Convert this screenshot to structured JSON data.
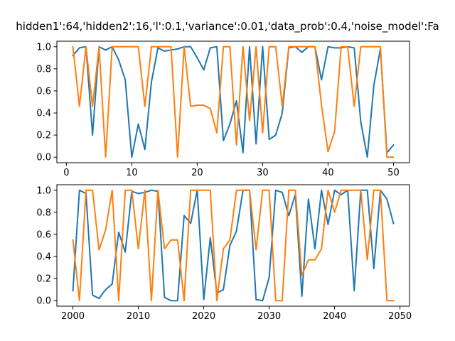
{
  "figure": {
    "title": "hidden1':64,'hidden2':16,'l':0.1,'variance':0.01,'data_prob':0.4,'noise_model':Fa"
  },
  "colors": {
    "series_a": "#1f77b4",
    "series_b": "#ff7f0e"
  },
  "chart_data": [
    {
      "type": "line",
      "title": "",
      "xlabel": "",
      "ylabel": "",
      "grid": false,
      "xlim": [
        -1.45,
        52.45
      ],
      "ylim": [
        -0.05,
        1.05
      ],
      "xticks": [
        0,
        10,
        20,
        30,
        40,
        50
      ],
      "yticks": [
        0.0,
        0.2,
        0.4,
        0.6,
        0.8,
        1.0
      ],
      "ytick_labels": [
        "0.0",
        "0.2",
        "0.4",
        "0.6",
        "0.8",
        "1.0"
      ],
      "x": [
        1,
        2,
        3,
        4,
        5,
        6,
        7,
        8,
        9,
        10,
        11,
        12,
        13,
        14,
        15,
        16,
        17,
        18,
        19,
        20,
        21,
        22,
        23,
        24,
        25,
        26,
        27,
        28,
        29,
        30,
        31,
        32,
        33,
        34,
        35,
        36,
        37,
        38,
        39,
        40,
        41,
        42,
        43,
        44,
        45,
        46,
        47,
        48,
        49,
        50
      ],
      "series": [
        {
          "values": [
            0.92,
            0.99,
            1.0,
            0.2,
            1.0,
            0.97,
            1.0,
            0.88,
            0.7,
            0.0,
            0.3,
            0.07,
            0.68,
            0.99,
            0.96,
            0.97,
            0.98,
            1.0,
            1.0,
            0.9,
            0.79,
            0.99,
            1.0,
            0.15,
            0.3,
            0.51,
            0.04,
            1.0,
            0.12,
            1.0,
            0.16,
            0.2,
            0.4,
            0.99,
            1.0,
            0.95,
            1.0,
            1.0,
            0.7,
            1.0,
            0.99,
            0.99,
            1.0,
            0.99,
            0.32,
            0.0,
            0.65,
            0.98,
            0.04,
            0.11
          ]
        },
        {
          "values": [
            1.0,
            0.46,
            1.0,
            0.46,
            1.0,
            0.0,
            1.0,
            1.0,
            1.0,
            1.0,
            1.0,
            0.46,
            1.0,
            1.0,
            1.0,
            1.0,
            0.0,
            1.0,
            0.46,
            0.47,
            0.47,
            0.44,
            0.22,
            1.0,
            1.0,
            0.11,
            1.0,
            0.33,
            1.0,
            0.22,
            1.0,
            1.0,
            0.46,
            1.0,
            1.0,
            1.0,
            1.0,
            1.0,
            0.47,
            0.05,
            0.23,
            1.0,
            1.0,
            0.46,
            1.0,
            1.0,
            1.0,
            1.0,
            0.0,
            0.0
          ]
        }
      ]
    },
    {
      "type": "line",
      "title": "",
      "xlabel": "",
      "ylabel": "",
      "grid": false,
      "xlim": [
        1997.55,
        2051.45
      ],
      "ylim": [
        -0.05,
        1.05
      ],
      "xticks": [
        2000,
        2010,
        2020,
        2030,
        2040,
        2050
      ],
      "yticks": [
        0.0,
        0.2,
        0.4,
        0.6,
        0.8,
        1.0
      ],
      "ytick_labels": [
        "0.0",
        "0.2",
        "0.4",
        "0.6",
        "0.8",
        "1.0"
      ],
      "x": [
        2000,
        2001,
        2002,
        2003,
        2004,
        2005,
        2006,
        2007,
        2008,
        2009,
        2010,
        2011,
        2012,
        2013,
        2014,
        2015,
        2016,
        2017,
        2018,
        2019,
        2020,
        2021,
        2022,
        2023,
        2024,
        2025,
        2026,
        2027,
        2028,
        2029,
        2030,
        2031,
        2032,
        2033,
        2034,
        2035,
        2036,
        2037,
        2038,
        2039,
        2040,
        2041,
        2042,
        2043,
        2044,
        2045,
        2046,
        2047,
        2048,
        2049
      ],
      "series": [
        {
          "values": [
            0.09,
            1.0,
            0.97,
            0.05,
            0.02,
            0.1,
            0.15,
            0.62,
            0.44,
            0.99,
            0.97,
            0.98,
            1.0,
            0.99,
            0.03,
            0.0,
            0.0,
            0.77,
            0.7,
            1.0,
            0.01,
            0.57,
            0.07,
            0.1,
            0.5,
            0.63,
            1.0,
            1.0,
            0.01,
            0.0,
            0.21,
            1.0,
            0.98,
            0.77,
            0.96,
            0.04,
            0.92,
            0.47,
            1.0,
            0.69,
            1.0,
            0.96,
            1.0,
            0.09,
            1.0,
            1.0,
            0.29,
            1.0,
            0.92,
            0.7
          ]
        },
        {
          "values": [
            0.55,
            0.0,
            1.0,
            1.0,
            0.46,
            0.64,
            1.0,
            0.0,
            1.0,
            1.0,
            0.47,
            1.0,
            0.0,
            1.0,
            0.47,
            0.55,
            0.55,
            0.0,
            1.0,
            1.0,
            1.0,
            1.0,
            0.0,
            0.47,
            0.55,
            1.0,
            1.0,
            1.0,
            0.46,
            1.0,
            1.0,
            0.0,
            0.0,
            1.0,
            1.0,
            0.23,
            0.37,
            0.37,
            0.47,
            1.0,
            0.8,
            1.0,
            1.0,
            1.0,
            1.0,
            0.37,
            1.0,
            1.0,
            0.0,
            0.0
          ]
        }
      ]
    }
  ]
}
